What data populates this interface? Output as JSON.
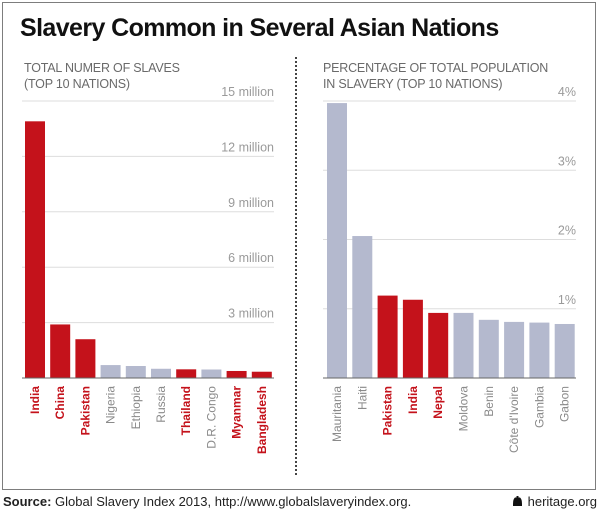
{
  "title": "Slavery Common in Several Asian Nations",
  "colors": {
    "highlight": "#c4121b",
    "other": "#b4b9ce",
    "grid": "#dddddd",
    "tick": "#9a9a9a",
    "other_label": "#8a8a8a"
  },
  "chart_data": [
    {
      "type": "bar",
      "subtitle_line1": "TOTAL NUMER OF SLAVES",
      "subtitle_line2": "(TOP 10 NATIONS)",
      "categories": [
        "India",
        "China",
        "Pakistan",
        "Nigeria",
        "Ethiopia",
        "Russia",
        "Thailand",
        "D.R. Congo",
        "Myanmar",
        "Bangladesh"
      ],
      "values": [
        13.9,
        2.9,
        2.1,
        0.7,
        0.65,
        0.5,
        0.47,
        0.46,
        0.38,
        0.34
      ],
      "highlighted": [
        true,
        true,
        true,
        false,
        false,
        false,
        true,
        false,
        true,
        true
      ],
      "unit": "million",
      "ylim": [
        0,
        15
      ],
      "ticks": [
        3,
        6,
        9,
        12,
        15
      ],
      "tick_labels": [
        "3 million",
        "6 million",
        "9 million",
        "12 million",
        "15 million"
      ],
      "grid": true
    },
    {
      "type": "bar",
      "subtitle_line1": "PERCENTAGE OF TOTAL POPULATION",
      "subtitle_line2": "IN SLAVERY (TOP 10 NATIONS)",
      "categories": [
        "Mauritania",
        "Haiti",
        "Pakistan",
        "India",
        "Nepal",
        "Moldova",
        "Benin",
        "Côte d'Ivoire",
        "Gambia",
        "Gabon"
      ],
      "values": [
        3.97,
        2.05,
        1.19,
        1.13,
        0.94,
        0.94,
        0.84,
        0.81,
        0.8,
        0.78
      ],
      "highlighted": [
        false,
        false,
        true,
        true,
        true,
        false,
        false,
        false,
        false,
        false
      ],
      "unit": "%",
      "ylim": [
        0,
        4
      ],
      "ticks": [
        1,
        2,
        3,
        4
      ],
      "tick_labels": [
        "1%",
        "2%",
        "3%",
        "4%"
      ],
      "grid": true
    }
  ],
  "footer": {
    "source_label": "Source:",
    "source_text": " Global Slavery Index 2013, http://www.globalslaveryindex.org.",
    "brand": "heritage.org",
    "brand_icon": "bell-icon"
  }
}
